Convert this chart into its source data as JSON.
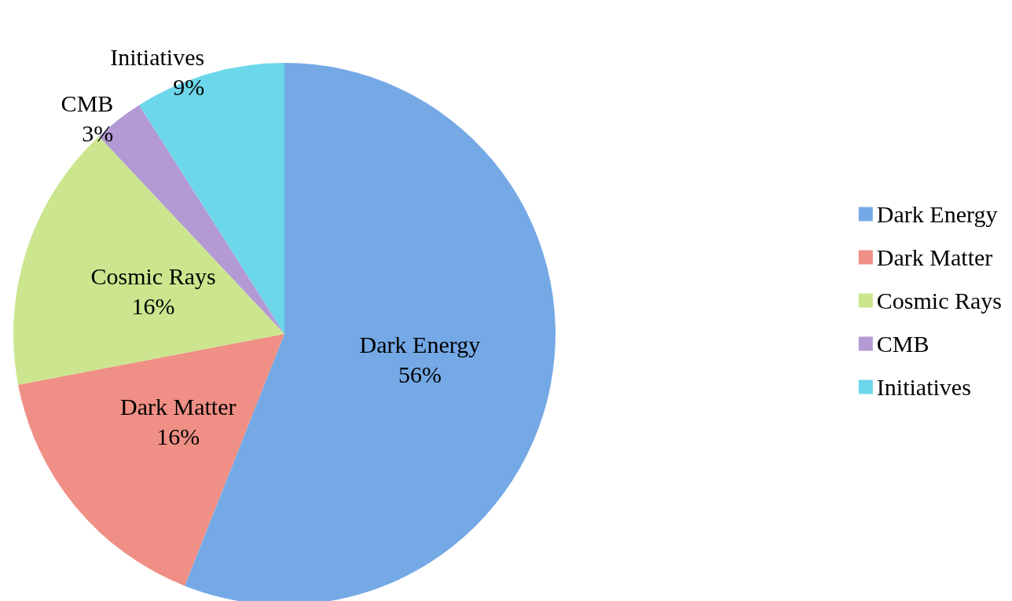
{
  "chart_data": {
    "type": "pie",
    "categories": [
      "Dark Energy",
      "Dark Matter",
      "Cosmic Rays",
      "CMB",
      "Initiatives"
    ],
    "values": [
      56,
      16,
      16,
      3,
      9
    ],
    "colors": [
      "#74a9e6",
      "#ef8f85",
      "#cbe68e",
      "#b39ad4",
      "#6cd6ea"
    ],
    "value_labels": [
      "56%",
      "16%",
      "16%",
      "3%",
      "9%"
    ],
    "legend": "right"
  }
}
